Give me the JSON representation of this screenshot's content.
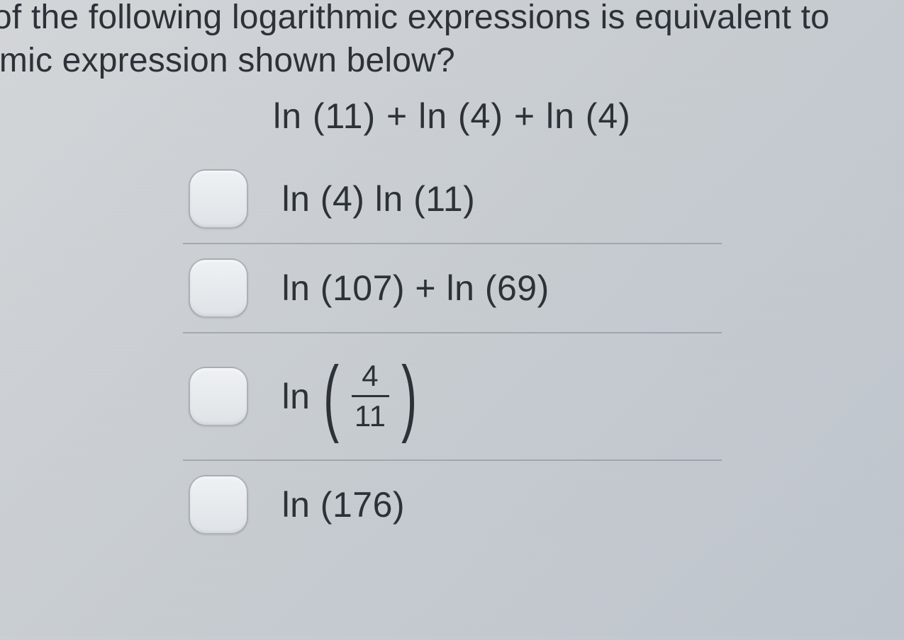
{
  "question": {
    "line1": "of the following logarithmic expressions is equivalent to",
    "line2": "nmic expression shown below?"
  },
  "expression": "ln (11)  +  ln (4)  +  ln (4)",
  "options": [
    {
      "type": "text",
      "label": "ln (4)  ln (11)"
    },
    {
      "type": "text",
      "label": "ln (107)  +  ln (69)"
    },
    {
      "type": "fraction",
      "prefix": "ln",
      "numerator": "4",
      "denominator": "11"
    },
    {
      "type": "text",
      "label": "ln (176)"
    }
  ],
  "colors": {
    "text": "#2d3238",
    "bg_start": "#d4d7da",
    "bg_end": "#bfc6cd",
    "divider": "rgba(90,100,110,0.35)",
    "checkbox_border": "rgba(120,130,140,0.55)"
  },
  "typography": {
    "question_fontsize": 48,
    "expression_fontsize": 50,
    "option_fontsize": 50
  }
}
